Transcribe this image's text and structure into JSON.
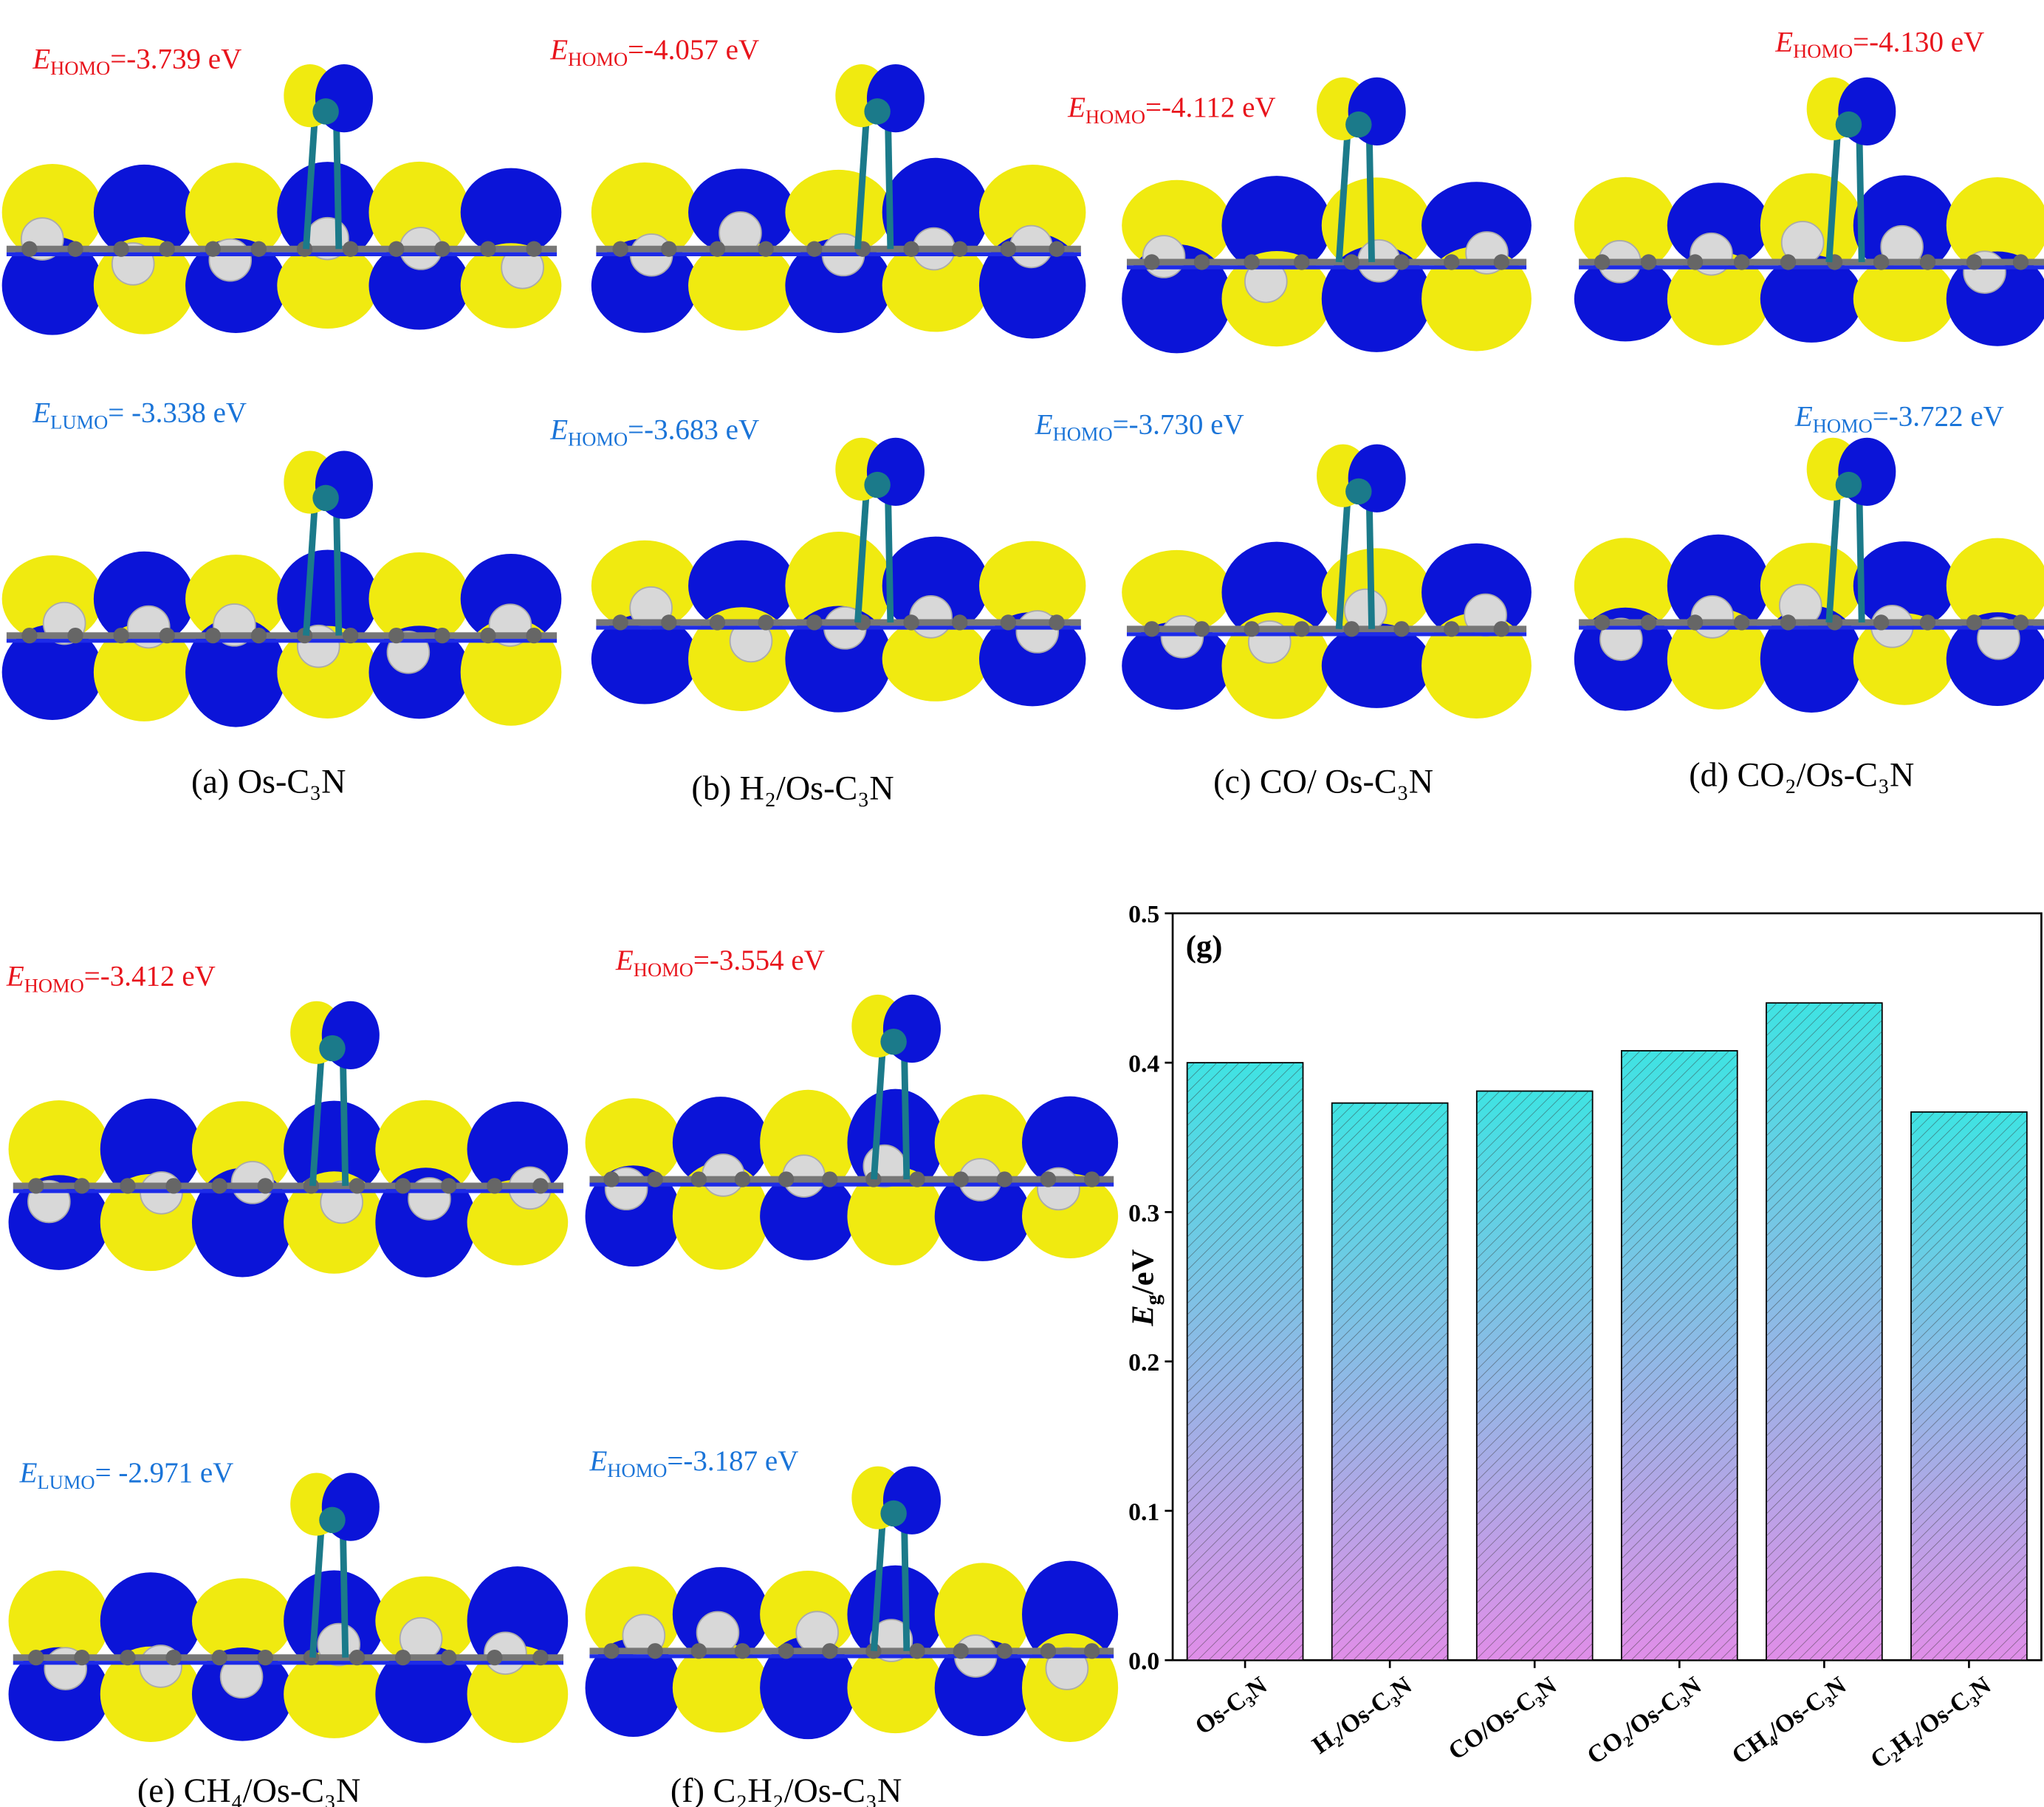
{
  "panels": [
    {
      "caption": "(a) Os-C₃N",
      "upper": {
        "symbol": "E",
        "sub": "HOMO",
        "text": "=-3.739 eV"
      },
      "lower": {
        "symbol": "E",
        "sub": "LUMO",
        "text": "= -3.338 eV"
      }
    },
    {
      "caption": "(b) H₂/Os-C₃N",
      "upper": {
        "symbol": "E",
        "sub": "HOMO",
        "text": "=-4.057 eV"
      },
      "lower": {
        "symbol": "E",
        "sub": "HOMO",
        "text": "=-3.683 eV"
      }
    },
    {
      "caption": "(c) CO/ Os-C₃N",
      "upper": {
        "symbol": "E",
        "sub": "HOMO",
        "text": "=-4.112 eV"
      },
      "lower": {
        "symbol": "E",
        "sub": "HOMO",
        "text": "=-3.730 eV"
      }
    },
    {
      "caption": "(d) CO₂/Os-C₃N",
      "upper": {
        "symbol": "E",
        "sub": "HOMO",
        "text": "=-4.130 eV"
      },
      "lower": {
        "symbol": "E",
        "sub": "HOMO",
        "text": "=-3.722 eV"
      }
    },
    {
      "caption": "(e) CH₄/Os-C₃N",
      "upper": {
        "symbol": "E",
        "sub": "HOMO",
        "text": "=-3.412 eV"
      },
      "lower": {
        "symbol": "E",
        "sub": "LUMO",
        "text": "= -2.971 eV"
      }
    },
    {
      "caption": "(f) C₂H₂/Os-C₃N",
      "upper": {
        "symbol": "E",
        "sub": "HOMO",
        "text": "=-3.554 eV"
      },
      "lower": {
        "symbol": "E",
        "sub": "HOMO",
        "text": "=-3.187 eV"
      }
    }
  ],
  "chart_data": {
    "type": "bar",
    "panel_label": "(g)",
    "ylabel": {
      "symbol": "E",
      "sub": "g",
      "text": "/eV"
    },
    "categories": [
      "Os-C₃N",
      "H₂/Os-C₃N",
      "CO/Os-C₃N",
      "CO₂/Os-C₃N",
      "CH₄/Os-C₃N",
      "C₂H₂/Os-C₃N"
    ],
    "values": [
      0.4,
      0.373,
      0.381,
      0.408,
      0.44,
      0.367
    ],
    "ylim": [
      0,
      0.5
    ],
    "yticks": [
      {
        "value": 0,
        "label": "0.0"
      },
      0.1,
      0.2,
      0.3,
      0.4,
      0.5
    ],
    "color_top": "#3fe3e3",
    "color_bottom": "#e08ee8"
  }
}
